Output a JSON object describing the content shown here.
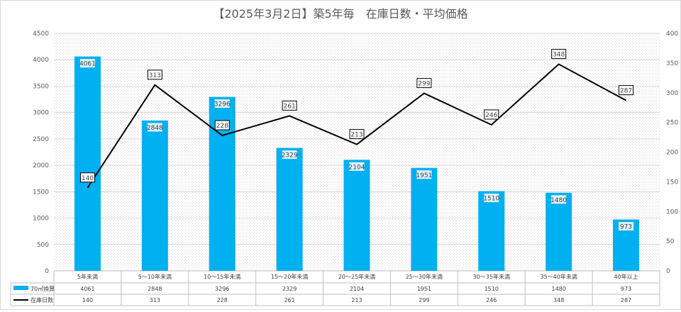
{
  "chart_data": {
    "type": "bar",
    "title": "【2025年3月2日】築5年毎　在庫日数・平均価格",
    "categories": [
      "5年未満",
      "5〜10年未満",
      "10〜15年未満",
      "15〜20年未満",
      "20〜25年未満",
      "25〜30年未満",
      "30〜35年未満",
      "35〜40年未満",
      "40年以上"
    ],
    "series": [
      {
        "name": "70㎡換算",
        "type": "bar",
        "axis": "left",
        "color": "#00b0f0",
        "values": [
          4061,
          2848,
          3296,
          2329,
          2104,
          1951,
          1510,
          1480,
          973
        ]
      },
      {
        "name": "在庫日数",
        "type": "line",
        "axis": "right",
        "color": "#000000",
        "values": [
          140,
          313,
          228,
          261,
          213,
          299,
          246,
          348,
          287
        ]
      }
    ],
    "y_left": {
      "min": 0,
      "max": 4500,
      "step": 500
    },
    "y_right": {
      "min": 0,
      "max": 400,
      "step": 50
    },
    "grid": true,
    "legend": "data-table-below"
  }
}
